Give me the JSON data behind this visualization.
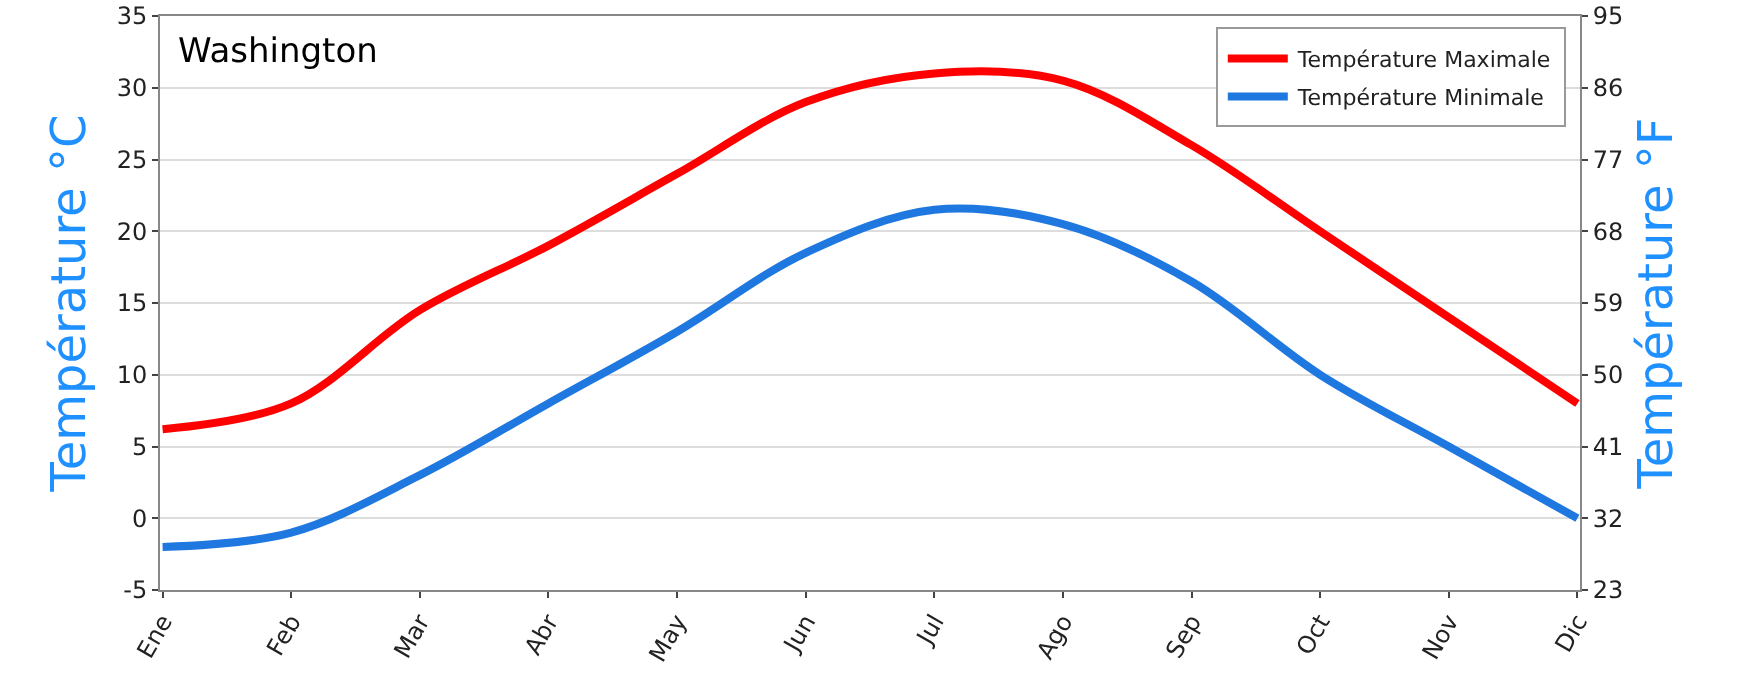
{
  "chart_data": {
    "type": "line",
    "title": "Washington",
    "ylabel": "Température °C",
    "y2label": "Température °F",
    "categories": [
      "Ene",
      "Feb",
      "Mar",
      "Abr",
      "May",
      "Jun",
      "Jul",
      "Ago",
      "Sep",
      "Oct",
      "Nov",
      "Dic"
    ],
    "series": [
      {
        "name": "Température Maximale",
        "color": "#ff0000",
        "values": [
          6.2,
          8,
          14.5,
          19,
          24,
          29,
          31,
          30.5,
          26,
          20,
          14,
          8
        ]
      },
      {
        "name": "Température Minimale",
        "color": "#1e78e0",
        "values": [
          -2,
          -1,
          3,
          8,
          13,
          18.5,
          21.5,
          20.5,
          16.5,
          10,
          5,
          0
        ]
      }
    ],
    "ylim": [
      -5,
      35
    ],
    "yticks": [
      -5,
      0,
      5,
      10,
      15,
      20,
      25,
      30,
      35
    ],
    "y2lim": [
      23,
      95
    ],
    "y2ticks": [
      23,
      32,
      41,
      50,
      59,
      68,
      77,
      86,
      95
    ],
    "grid": "y",
    "legend": "top right",
    "marker": "none",
    "line_style": "solid"
  }
}
